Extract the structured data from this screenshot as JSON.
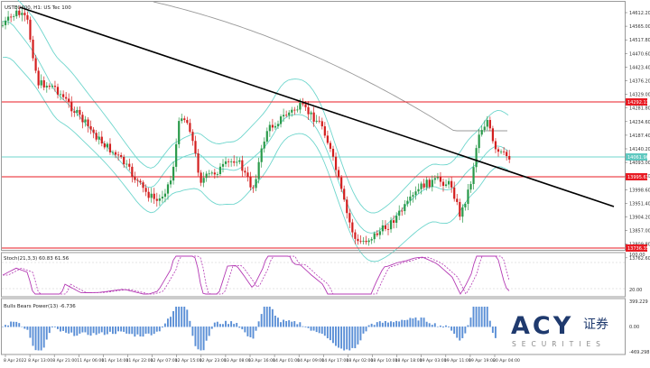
{
  "symbol_label": "USTEC400, H1:  US Tec 100",
  "price_axis": {
    "ticks": [
      "14612.20",
      "14565.00",
      "14517.80",
      "14470.60",
      "14423.40",
      "14376.20",
      "14329.00",
      "14281.80",
      "14234.60",
      "14187.40",
      "14140.20",
      "14093.00",
      "14045.80",
      "13998.60",
      "13951.40",
      "13904.20",
      "13857.00",
      "13809.80",
      "13762.60"
    ],
    "tags": [
      {
        "text": "14292.13",
        "color": "#e81b23"
      },
      {
        "text": "14061.96",
        "color": "#5fc8c0"
      },
      {
        "text": "13995.63",
        "color": "#e81b23"
      },
      {
        "text": "13736.35",
        "color": "#e81b23"
      }
    ]
  },
  "stoch": {
    "label": "Stoch(21,3,3) 60.83 61.56",
    "ticks": [
      "100.00",
      "20.00"
    ]
  },
  "bulls": {
    "label": "Bulls Bears Power(13) -6.736",
    "ticks": [
      "399.229",
      "0.00",
      "-469.298"
    ]
  },
  "time_axis": [
    "8 Apr 2022",
    "8 Apr 13:00",
    "8 Apr 21:00",
    "11 Apr 06:00",
    "11 Apr 14:00",
    "11 Apr 22:00",
    "12 Apr 07:00",
    "12 Apr 15:00",
    "12 Apr 23:00",
    "13 Apr 08:00",
    "13 Apr 16:00",
    "14 Apr 01:00",
    "14 Apr 09:00",
    "14 Apr 17:00",
    "18 Apr 02:00",
    "18 Apr 10:00",
    "18 Apr 18:00",
    "19 Apr 03:00",
    "19 Apr 11:00",
    "19 Apr 19:00",
    "20 Apr 04:00"
  ],
  "logo": {
    "brand": "ACY",
    "cn": "证券",
    "sub": "SECURITIES"
  },
  "colors": {
    "bull": "#2a9a4a",
    "bear": "#d31f1f",
    "band": "#6fd6cd",
    "ma": "#999999",
    "level": "#e81b23",
    "trend": "#000000",
    "stoch_main": "#b43ab4",
    "bulls_bar": "#5b8fd6",
    "logo_blue": "#1f3a6e",
    "logo_grey": "#8a8a8a"
  }
}
